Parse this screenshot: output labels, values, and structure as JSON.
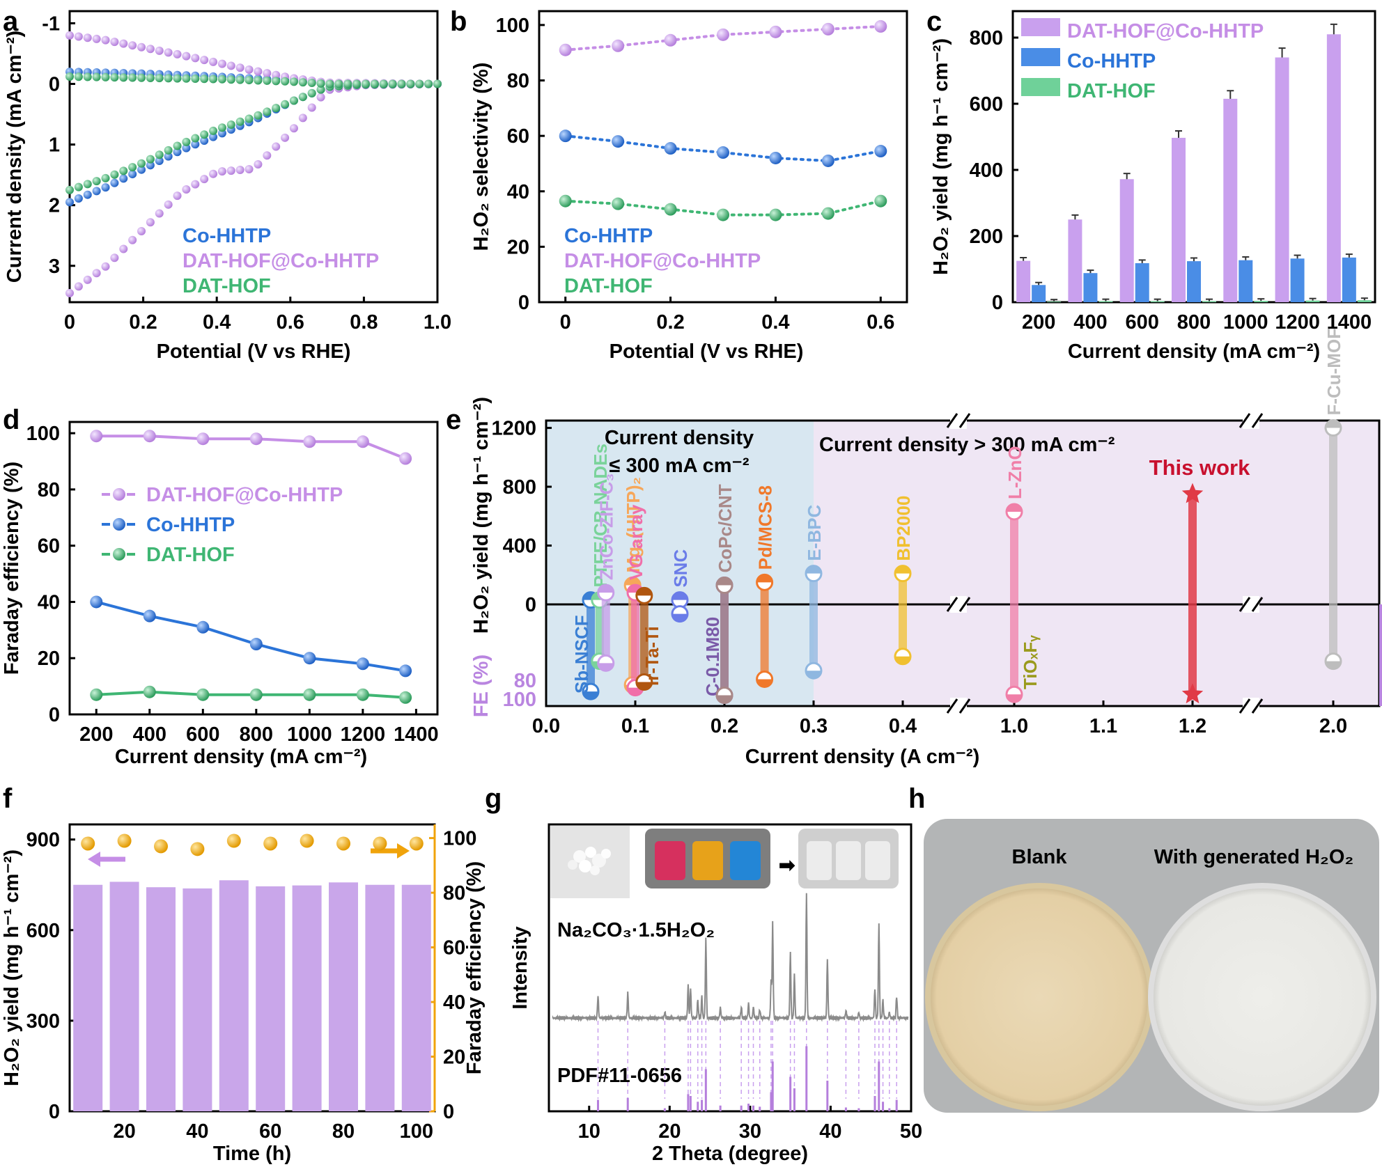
{
  "colors": {
    "purple": "#c58ee6",
    "blue": "#2b74d8",
    "green": "#3fb673",
    "orange": "#f0a30a",
    "bar": "#c9a6ea",
    "gray": "#8c8c8c",
    "red": "#d81b23"
  },
  "panels": {
    "a": "a",
    "b": "b",
    "c": "c",
    "d": "d",
    "e": "e",
    "f": "f",
    "g": "g",
    "h": "h"
  },
  "chart_data": [
    {
      "id": "a",
      "type": "scatter",
      "xlabel": "Potential (V vs RHE)",
      "ylabel": "Current density (mA cm⁻²)",
      "xlim": [
        0,
        1.0
      ],
      "ylim": [
        -1.2,
        3.6
      ],
      "yreversed": true,
      "xticks": [
        "0",
        "0.2",
        "0.4",
        "0.6",
        "0.8",
        "1.0"
      ],
      "yticks": [
        "-1",
        "0",
        "1",
        "2",
        "3"
      ],
      "legend": [
        "Co-HHTP",
        "DAT-HOF@Co-HHTP",
        "DAT-HOF"
      ],
      "series": [
        {
          "name": "Co-HHTP",
          "color": "blue",
          "points": [
            [
              0,
              1.95
            ],
            [
              0.1,
              1.7
            ],
            [
              0.2,
              1.4
            ],
            [
              0.3,
              1.1
            ],
            [
              0.4,
              0.85
            ],
            [
              0.5,
              0.6
            ],
            [
              0.6,
              0.3
            ],
            [
              0.7,
              0.05
            ],
            [
              0.8,
              0.01
            ],
            [
              1.0,
              0
            ]
          ]
        },
        {
          "name": "DAT-HOF@Co-HHTP",
          "color": "purple",
          "points": [
            [
              0,
              3.45
            ],
            [
              0.1,
              3.0
            ],
            [
              0.2,
              2.4
            ],
            [
              0.3,
              1.8
            ],
            [
              0.4,
              1.45
            ],
            [
              0.5,
              1.4
            ],
            [
              0.6,
              0.8
            ],
            [
              0.7,
              0.1
            ],
            [
              0.8,
              0.02
            ],
            [
              1.0,
              0
            ]
          ]
        },
        {
          "name": "DAT-HOF",
          "color": "green",
          "points": [
            [
              0,
              1.75
            ],
            [
              0.1,
              1.55
            ],
            [
              0.2,
              1.3
            ],
            [
              0.3,
              1.0
            ],
            [
              0.4,
              0.75
            ],
            [
              0.5,
              0.55
            ],
            [
              0.6,
              0.3
            ],
            [
              0.7,
              0.05
            ],
            [
              0.8,
              0.01
            ],
            [
              1.0,
              0
            ]
          ]
        },
        {
          "name": "Co-HHTP-neg",
          "color": "blue",
          "points": [
            [
              0,
              -0.2
            ],
            [
              0.2,
              -0.17
            ],
            [
              0.4,
              -0.12
            ],
            [
              0.6,
              -0.06
            ],
            [
              0.7,
              0
            ],
            [
              1.0,
              0
            ]
          ]
        },
        {
          "name": "DAT-HOF@Co-HHTP-neg",
          "color": "purple",
          "points": [
            [
              0,
              -0.8
            ],
            [
              0.1,
              -0.72
            ],
            [
              0.2,
              -0.6
            ],
            [
              0.3,
              -0.48
            ],
            [
              0.4,
              -0.35
            ],
            [
              0.5,
              -0.22
            ],
            [
              0.6,
              -0.1
            ],
            [
              0.7,
              -0.02
            ],
            [
              1.0,
              0
            ]
          ]
        },
        {
          "name": "DAT-HOF-neg",
          "color": "green",
          "points": [
            [
              0,
              -0.12
            ],
            [
              0.2,
              -0.1
            ],
            [
              0.4,
              -0.08
            ],
            [
              0.6,
              -0.04
            ],
            [
              0.7,
              0
            ],
            [
              1.0,
              0
            ]
          ]
        }
      ]
    },
    {
      "id": "b",
      "type": "line",
      "xlabel": "Potential (V vs RHE)",
      "ylabel": "H₂O₂ selectivity (%)",
      "xlim": [
        -0.05,
        0.65
      ],
      "ylim": [
        0,
        105
      ],
      "xticks": [
        "0",
        "0.2",
        "0.4",
        "0.6"
      ],
      "yticks": [
        "0",
        "20",
        "40",
        "60",
        "80",
        "100"
      ],
      "x": [
        0,
        0.1,
        0.2,
        0.3,
        0.4,
        0.5,
        0.6
      ],
      "legend": [
        "Co-HHTP",
        "DAT-HOF@Co-HHTP",
        "DAT-HOF"
      ],
      "series": [
        {
          "name": "DAT-HOF@Co-HHTP",
          "color": "purple",
          "values": [
            91,
            92.5,
            94.5,
            96.5,
            97.5,
            98.5,
            99.5
          ]
        },
        {
          "name": "Co-HHTP",
          "color": "blue",
          "values": [
            60,
            58,
            55.5,
            54,
            52,
            51,
            54.5
          ]
        },
        {
          "name": "DAT-HOF",
          "color": "green",
          "values": [
            36.5,
            35.5,
            33.5,
            31.5,
            31.5,
            32,
            36.5
          ]
        }
      ]
    },
    {
      "id": "c",
      "type": "bar",
      "xlabel": "Current density (mA cm⁻²)",
      "ylabel": "H₂O₂ yield (mg h⁻¹ cm⁻²)",
      "categories": [
        "200",
        "400",
        "600",
        "800",
        "1000",
        "1200",
        "1400"
      ],
      "ylim": [
        0,
        880
      ],
      "yticks": [
        "0",
        "200",
        "400",
        "600",
        "800"
      ],
      "legend": [
        "DAT-HOF@Co-HHTP",
        "Co-HHTP",
        "DAT-HOF"
      ],
      "series": [
        {
          "name": "DAT-HOF@Co-HHTP",
          "color": "purple",
          "values": [
            125,
            250,
            372,
            497,
            615,
            740,
            810
          ]
        },
        {
          "name": "Co-HHTP",
          "color": "blue",
          "values": [
            52,
            88,
            118,
            124,
            127,
            132,
            135
          ]
        },
        {
          "name": "DAT-HOF",
          "color": "green",
          "values": [
            2,
            3,
            3,
            3,
            4,
            5,
            6
          ]
        }
      ]
    },
    {
      "id": "d",
      "type": "line",
      "xlabel": "Current density (mA cm⁻²)",
      "ylabel": "Faraday efficiency (%)",
      "xlim": [
        100,
        1480
      ],
      "ylim": [
        0,
        104
      ],
      "xticks": [
        "200",
        "400",
        "600",
        "800",
        "1000",
        "1200",
        "1400"
      ],
      "yticks": [
        "0",
        "20",
        "40",
        "60",
        "80",
        "100"
      ],
      "x": [
        200,
        400,
        600,
        800,
        1000,
        1200,
        1360
      ],
      "legend": [
        "DAT-HOF@Co-HHTP",
        "Co-HHTP",
        "DAT-HOF"
      ],
      "series": [
        {
          "name": "DAT-HOF@Co-HHTP",
          "color": "purple",
          "values": [
            99,
            99,
            98,
            98,
            97,
            97,
            91
          ]
        },
        {
          "name": "Co-HHTP",
          "color": "blue",
          "values": [
            40,
            35,
            31,
            25,
            20,
            18,
            15.5
          ]
        },
        {
          "name": "DAT-HOF",
          "color": "green",
          "values": [
            7,
            8,
            7,
            7,
            7,
            7,
            6
          ]
        }
      ]
    },
    {
      "id": "e",
      "type": "scatter",
      "xlabel": "Current density (A cm⁻²)",
      "ylabel": "H₂O₂ yield (mg h⁻¹ cm⁻²)",
      "ylabel2": "FE (%)",
      "xticks": [
        "0.0",
        "0.1",
        "0.2",
        "0.3",
        "0.4",
        "1.0",
        "1.1",
        "1.2",
        "2.0"
      ],
      "yticks_top": [
        "1200",
        "800",
        "400",
        "0"
      ],
      "yticks_bottom": [
        "80",
        "100"
      ],
      "region_low": "Current density ≤ 300 mA cm⁻²",
      "region_high": "Current density > 300 mA cm⁻²",
      "highlight": "This work",
      "catalysts": [
        {
          "name": "Sb-NSCF",
          "x": 0.05,
          "yield": 30,
          "fe": 92,
          "color": "#3a7fd4",
          "label_side": "bottom"
        },
        {
          "name": "PTFE/CB NADEs",
          "x": 0.06,
          "yield": 30,
          "fe": 60,
          "color": "#7ad39a",
          "label_side": "top"
        },
        {
          "name": "ZnCo-ZIF-C₃",
          "x": 0.067,
          "yield": 80,
          "fe": 62,
          "color": "#c79de8",
          "label_side": "top"
        },
        {
          "name": "Mg₃(HITP)₂",
          "x": 0.097,
          "yield": 130,
          "fe": 85,
          "color": "#f6a75a",
          "label_side": "top"
        },
        {
          "name": "VG array",
          "x": 0.1,
          "yield": 80,
          "fe": 88,
          "color": "#f06fa9",
          "label_side": "top"
        },
        {
          "name": "Ir-Ta-Ti",
          "x": 0.11,
          "yield": 60,
          "fe": 82,
          "color": "#b0560f",
          "label_side": "bottom"
        },
        {
          "name": "SNC",
          "x": 0.15,
          "yield": 30,
          "fe": 10,
          "color": "#6a7ce8",
          "label_side": "top"
        },
        {
          "name": "C-0.1M80",
          "x": 0.2,
          "yield": 130,
          "fe": 96,
          "color": "#7a5aa8",
          "label_side": "bottom"
        },
        {
          "name": "CoPc/CNT",
          "x": 0.2,
          "yield": 130,
          "fe": 96,
          "color": "#a98888",
          "label_side": "top"
        },
        {
          "name": "Pd/MCS-8",
          "x": 0.245,
          "yield": 150,
          "fe": 79,
          "color": "#f0782a",
          "label_side": "top"
        },
        {
          "name": "E-BPC",
          "x": 0.3,
          "yield": 210,
          "fe": 70,
          "color": "#8fb7e0",
          "label_side": "top"
        },
        {
          "name": "BP2000",
          "x": 0.4,
          "yield": 210,
          "fe": 55,
          "color": "#f0c030",
          "label_side": "top"
        },
        {
          "name": "L-ZnO",
          "x": 1.0,
          "yield": 630,
          "fe": 95,
          "color": "#f07fa8",
          "label_side": "top"
        },
        {
          "name": "TiOₓFᵧ",
          "x": 1.02,
          "yield": 0,
          "fe": 0,
          "color": "#9a9a1c",
          "label_side": "bottom"
        },
        {
          "name": "This work",
          "x": 1.2,
          "yield": 750,
          "fe": 95,
          "color": "#e03a46",
          "label_side": "none"
        },
        {
          "name": "F-Cu-MOF",
          "x": 2.0,
          "yield": 1200,
          "fe": 60,
          "color": "#bdbdbd",
          "label_side": "top"
        }
      ]
    },
    {
      "id": "f",
      "type": "bar",
      "xlabel": "Time (h)",
      "ylabel": "H₂O₂ yield (mg h⁻¹ cm⁻²)",
      "ylabel2": "Faraday efficiency (%)",
      "xlim": [
        5,
        105
      ],
      "ylim": [
        0,
        950
      ],
      "ylim2": [
        0,
        105
      ],
      "xticks": [
        "20",
        "40",
        "60",
        "80",
        "100"
      ],
      "yticks": [
        "0",
        "300",
        "600",
        "900"
      ],
      "yticks2": [
        "0",
        "20",
        "40",
        "60",
        "80",
        "100"
      ],
      "x": [
        10,
        20,
        30,
        40,
        50,
        60,
        70,
        80,
        90,
        100
      ],
      "yield": [
        750,
        760,
        742,
        738,
        765,
        745,
        748,
        758,
        750,
        750
      ],
      "fe": [
        98,
        99,
        97,
        96,
        99,
        98,
        99,
        98,
        98,
        98
      ]
    },
    {
      "id": "g",
      "type": "line",
      "xlabel": "2 Theta (degree)",
      "ylabel": "Intensity",
      "xlim": [
        5,
        50
      ],
      "xticks": [
        "10",
        "20",
        "30",
        "40",
        "50"
      ],
      "sample_label": "Na₂CO₃·1.5H₂O₂",
      "reference_label": "PDF#11-0656",
      "peaks": [
        [
          11.1,
          30
        ],
        [
          14.8,
          35
        ],
        [
          19.4,
          8
        ],
        [
          22.3,
          45
        ],
        [
          22.6,
          40
        ],
        [
          23.5,
          25
        ],
        [
          24.0,
          30
        ],
        [
          24.5,
          110
        ],
        [
          26.3,
          15
        ],
        [
          28.9,
          15
        ],
        [
          29.8,
          20
        ],
        [
          30.4,
          15
        ],
        [
          31.2,
          12
        ],
        [
          32.6,
          50
        ],
        [
          32.8,
          130
        ],
        [
          35.0,
          90
        ],
        [
          35.5,
          60
        ],
        [
          37.0,
          170
        ],
        [
          39.6,
          80
        ],
        [
          41.9,
          10
        ],
        [
          43.5,
          8
        ],
        [
          45.5,
          40
        ],
        [
          46.0,
          130
        ],
        [
          46.5,
          25
        ],
        [
          47.3,
          8
        ],
        [
          48.2,
          30
        ]
      ]
    },
    {
      "id": "h",
      "type": "table",
      "label_left": "Blank",
      "label_right": "With generated H₂O₂"
    }
  ]
}
